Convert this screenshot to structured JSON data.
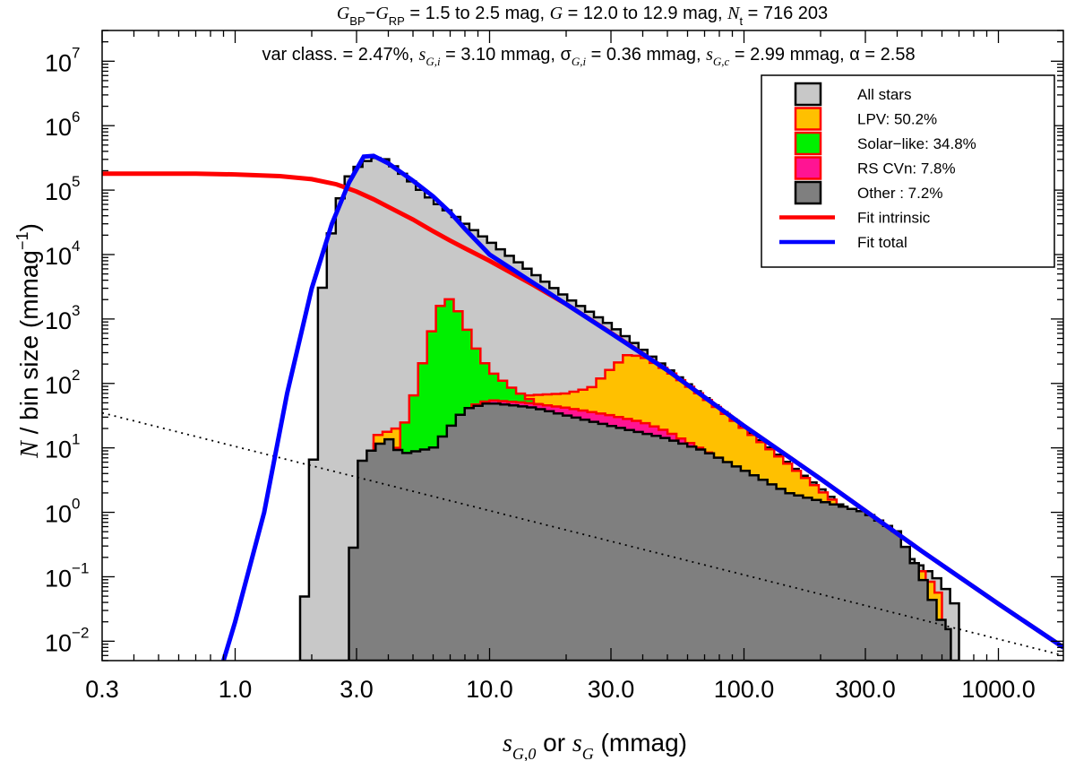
{
  "chart_data": {
    "type": "histogram",
    "scale": {
      "x": "log",
      "y": "log"
    },
    "xlim": [
      0.3,
      1800
    ],
    "ylim": [
      0.005,
      30000000
    ],
    "x_ticks": [
      0.3,
      1.0,
      3.0,
      10.0,
      30.0,
      100.0,
      300.0,
      1000.0
    ],
    "x_tick_labels": [
      "0.3",
      "1.0",
      "3.0",
      "10.0",
      "30.0",
      "100.0",
      "300.0",
      "1000.0"
    ],
    "y_ticks": [
      0.01,
      0.1,
      1,
      10,
      100,
      1000,
      10000,
      100000,
      1000000,
      10000000
    ],
    "y_tick_base": "10",
    "y_tick_exponents": [
      "−2",
      "−1",
      "0",
      "1",
      "2",
      "3",
      "4",
      "5",
      "6",
      "7"
    ],
    "xlabel": {
      "main": "s",
      "sub": "G,0",
      "mid": " or ",
      "main2": "s",
      "sub2": "G",
      "tail": " (mmag)"
    },
    "ylabel": {
      "italic": "N",
      "text": " / bin size (mmag",
      "sup": "−1",
      "close": ")"
    },
    "title_line1": {
      "color": "G",
      "bp": "BP",
      "dash": "−",
      "rp": "RP",
      "color_range": " =  1.5 to  2.5 mag, ",
      "g": "G",
      "g_range": " = 12.0 to 12.9 mag, ",
      "n": "N",
      "n_sub": "t",
      "n_value": " = 716 203"
    },
    "title_line2": {
      "a": "var class. = 2.47%, ",
      "b_var": "s",
      "b_sub": "G,i",
      "b_val": " = 3.10 mmag, ",
      "c_var": "σ",
      "c_sub": "G,i",
      "c_val": " = 0.36 mmag, ",
      "d_var": "s",
      "d_sub": "G,c",
      "d_val": " = 2.99 mmag, ",
      "e": "α = 2.58"
    },
    "legend": {
      "position": "top-right",
      "items": [
        {
          "label": "All stars",
          "kind": "box",
          "fill": "#c8c8c8",
          "stroke": "#000000"
        },
        {
          "label": "LPV: 50.2%",
          "kind": "box",
          "fill": "#ffc000",
          "stroke": "#ff0000"
        },
        {
          "label": "Solar−like: 34.8%",
          "kind": "box",
          "fill": "#00f000",
          "stroke": "#ff0000"
        },
        {
          "label": "RS CVn: 7.8%",
          "kind": "box",
          "fill": "#ff1493",
          "stroke": "#ff0000"
        },
        {
          "label": "Other : 7.2%",
          "kind": "box",
          "fill": "#7f7f7f",
          "stroke": "#000000"
        },
        {
          "label": "Fit intrinsic",
          "kind": "line",
          "stroke": "#ff0000"
        },
        {
          "label": "Fit total",
          "kind": "line",
          "stroke": "#0000ff"
        }
      ]
    },
    "colors": {
      "all": "#c8c8c8",
      "lpv": "#ffc000",
      "solar": "#00f000",
      "rscvn": "#ff1493",
      "other": "#7f7f7f",
      "fit_intrinsic": "#ff0000",
      "fit_total": "#0000ff"
    },
    "series": [
      {
        "name": "All stars",
        "points": [
          [
            1.8,
            0.005
          ],
          [
            2.0,
            2
          ],
          [
            2.2,
            3000
          ],
          [
            2.45,
            40000
          ],
          [
            2.75,
            150000
          ],
          [
            3.1,
            250000
          ],
          [
            3.5,
            320000
          ],
          [
            3.9,
            300000
          ],
          [
            4.4,
            200000
          ],
          [
            5.0,
            130000
          ],
          [
            5.6,
            85000
          ],
          [
            6.3,
            60000
          ],
          [
            7.0,
            45000
          ],
          [
            8.0,
            30000
          ],
          [
            10,
            16000
          ],
          [
            15,
            5000
          ],
          [
            20,
            2200
          ],
          [
            30,
            800
          ],
          [
            50,
            170
          ],
          [
            70,
            60
          ],
          [
            100,
            20
          ],
          [
            150,
            5.5
          ],
          [
            200,
            2.3
          ],
          [
            300,
            0.6
          ],
          [
            400,
            0.26
          ],
          [
            500,
            0.14
          ],
          [
            550,
            0.11
          ],
          [
            600,
            0.08
          ],
          [
            700,
            0.03
          ]
        ]
      },
      {
        "name": "LPV: 50.2%",
        "points": [
          [
            3.5,
            15
          ],
          [
            7,
            40
          ],
          [
            10,
            55
          ],
          [
            14,
            65
          ],
          [
            20,
            70
          ],
          [
            25,
            85
          ],
          [
            30,
            170
          ],
          [
            35,
            280
          ],
          [
            40,
            260
          ],
          [
            50,
            160
          ],
          [
            70,
            60
          ],
          [
            100,
            20
          ],
          [
            150,
            5.5
          ],
          [
            200,
            2.2
          ],
          [
            300,
            0.6
          ],
          [
            400,
            0.26
          ],
          [
            500,
            0.12
          ],
          [
            600,
            0.05
          ]
        ]
      },
      {
        "name": "Solar−like: 34.8%",
        "points": [
          [
            3.5,
            12
          ],
          [
            4.3,
            10
          ],
          [
            5,
            60
          ],
          [
            6,
            800
          ],
          [
            6.6,
            2200
          ],
          [
            7.2,
            1900
          ],
          [
            8,
            800
          ],
          [
            9,
            300
          ],
          [
            10,
            160
          ],
          [
            12,
            90
          ],
          [
            14,
            60
          ],
          [
            16,
            45
          ]
        ]
      },
      {
        "name": "RS CVn: 7.8%",
        "points": [
          [
            8.5,
            45
          ],
          [
            10,
            55
          ],
          [
            14,
            50
          ],
          [
            20,
            42
          ],
          [
            30,
            32
          ],
          [
            40,
            25
          ],
          [
            50,
            18
          ],
          [
            70,
            9
          ],
          [
            100,
            4
          ],
          [
            130,
            2.5
          ]
        ]
      },
      {
        "name": "Other : 7.2%",
        "points": [
          [
            2.8,
            0.005
          ],
          [
            3.0,
            5
          ],
          [
            3.5,
            10
          ],
          [
            4.0,
            14
          ],
          [
            4.5,
            8
          ],
          [
            6,
            10
          ],
          [
            8,
            40
          ],
          [
            10,
            50
          ],
          [
            15,
            42
          ],
          [
            20,
            32
          ],
          [
            30,
            22
          ],
          [
            50,
            14
          ],
          [
            70,
            9
          ],
          [
            100,
            4.5
          ],
          [
            150,
            2
          ],
          [
            200,
            1.5
          ],
          [
            300,
            1.0
          ],
          [
            400,
            0.5
          ],
          [
            500,
            0.1
          ],
          [
            600,
            0.02
          ],
          [
            650,
            0.015
          ]
        ]
      },
      {
        "name": "Fit intrinsic",
        "points": [
          [
            0.3,
            180000
          ],
          [
            0.7,
            180000
          ],
          [
            1.0,
            175000
          ],
          [
            1.5,
            165000
          ],
          [
            2.0,
            148000
          ],
          [
            2.5,
            123000
          ],
          [
            3.0,
            95000
          ],
          [
            3.5,
            72000
          ],
          [
            4.0,
            55000
          ],
          [
            5.0,
            35000
          ],
          [
            6.0,
            23000
          ],
          [
            7.0,
            16500
          ],
          [
            8.0,
            12500
          ],
          [
            10,
            8000
          ],
          [
            15,
            3300
          ],
          [
            20,
            1700
          ],
          [
            30,
            610
          ],
          [
            50,
            160
          ],
          [
            100,
            22
          ],
          [
            200,
            3.3
          ],
          [
            500,
            0.25
          ],
          [
            1000,
            0.038
          ],
          [
            1800,
            0.008
          ]
        ]
      },
      {
        "name": "Fit total",
        "points": [
          [
            0.9,
            0.005
          ],
          [
            1.0,
            0.02
          ],
          [
            1.3,
            1
          ],
          [
            1.6,
            70
          ],
          [
            2.0,
            3000
          ],
          [
            2.4,
            30000
          ],
          [
            2.8,
            130000
          ],
          [
            3.2,
            330000
          ],
          [
            3.5,
            340000
          ],
          [
            4.0,
            260000
          ],
          [
            5.0,
            140000
          ],
          [
            6.0,
            80000
          ],
          [
            7.0,
            45000
          ],
          [
            8.0,
            25000
          ],
          [
            10,
            10000
          ],
          [
            20,
            1700
          ],
          [
            30,
            600
          ],
          [
            50,
            160
          ],
          [
            100,
            22
          ],
          [
            200,
            3.3
          ],
          [
            500,
            0.25
          ],
          [
            1000,
            0.038
          ],
          [
            1800,
            0.008
          ]
        ]
      },
      {
        "name": "dotted reference",
        "points": [
          [
            0.3,
            35
          ],
          [
            1800,
            0.006
          ]
        ]
      }
    ]
  }
}
